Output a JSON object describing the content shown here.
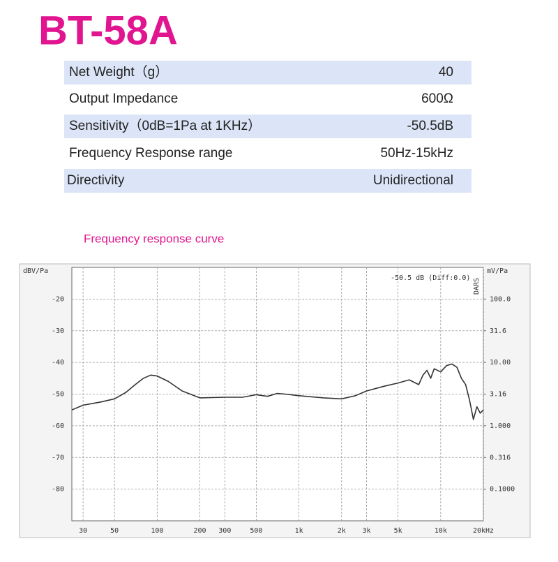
{
  "title": "BT-58A",
  "specs": {
    "rows": [
      [
        "Net Weight（g）",
        "40"
      ],
      [
        "Output Impedance",
        "600Ω"
      ],
      [
        "Sensitivity（0dB=1Pa at 1KHz）",
        "-50.5dB"
      ],
      [
        "Frequency Response range",
        "50Hz-15kHz"
      ],
      [
        "Directivity",
        "Unidirectional"
      ]
    ]
  },
  "chart_data": {
    "type": "line",
    "title": "Frequency response curve",
    "ylabel": "dBV/Pa",
    "y2label": "mV/Pa",
    "annotations": [
      "-50.5 dB (Diff:0.0)",
      "DARS"
    ],
    "xscale": "log",
    "y2scale": "log",
    "grid": true,
    "xlim": [
      25,
      20000
    ],
    "xticks": [
      30,
      50,
      100,
      200,
      300,
      500,
      {
        "value": 1000,
        "label": "1k"
      },
      {
        "value": 2000,
        "label": "2k"
      },
      {
        "value": 3000,
        "label": "3k"
      },
      {
        "value": 5000,
        "label": "5k"
      },
      {
        "value": 10000,
        "label": "10k"
      },
      {
        "value": 20000,
        "label": "20kHz"
      }
    ],
    "ylim": [
      -90,
      -10
    ],
    "yticks": [
      -20,
      -30,
      -40,
      -50,
      -60,
      -70,
      -80
    ],
    "y2lim": [
      0.0316,
      316.2
    ],
    "y2ticks": [
      {
        "value": 100,
        "label": "100.0"
      },
      31.6,
      {
        "value": 10,
        "label": "10.00"
      },
      3.16,
      {
        "value": 1,
        "label": "1.000"
      },
      0.316,
      {
        "value": 0.1,
        "label": "0.1000"
      }
    ],
    "x": [
      25,
      30,
      40,
      50,
      60,
      70,
      80,
      90,
      100,
      120,
      150,
      200,
      300,
      400,
      500,
      600,
      700,
      800,
      1000,
      1500,
      2000,
      2500,
      3000,
      4000,
      5000,
      6000,
      7000,
      7500,
      8000,
      8500,
      9000,
      10000,
      11000,
      12000,
      13000,
      14000,
      15000,
      16000,
      17000,
      18000,
      19000,
      20000
    ],
    "series": [
      {
        "color": "#333333",
        "values": [
          -55,
          -53.5,
          -52.5,
          -51.5,
          -49.5,
          -47,
          -45,
          -44,
          -44.3,
          -46,
          -49,
          -51.2,
          -51,
          -51,
          -50.2,
          -50.7,
          -49.8,
          -50,
          -50.5,
          -51.2,
          -51.5,
          -50.5,
          -49,
          -47.5,
          -46.5,
          -45.5,
          -47,
          -44,
          -42.5,
          -45,
          -42,
          -43,
          -41,
          -40.5,
          -41.5,
          -45,
          -47,
          -52,
          -58,
          -54,
          -56,
          -55
        ]
      }
    ]
  }
}
